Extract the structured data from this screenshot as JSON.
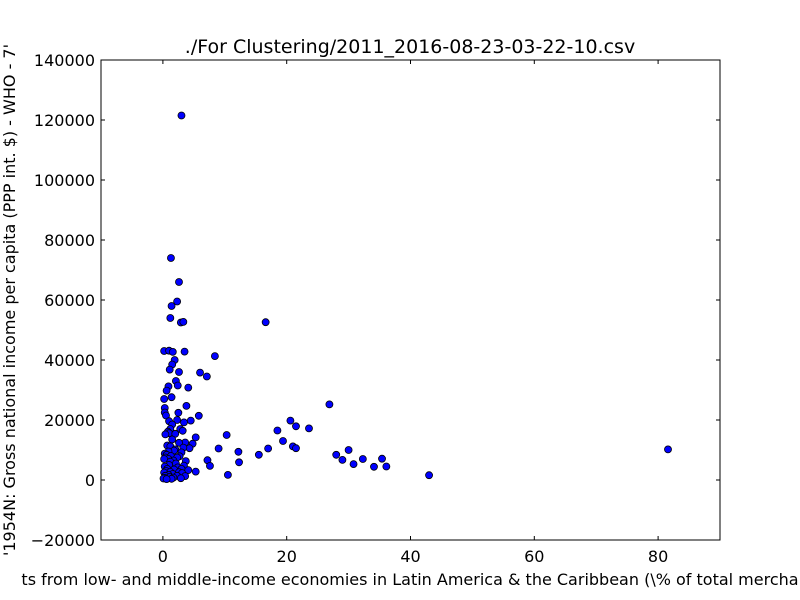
{
  "chart_data": {
    "type": "scatter",
    "title": "./For Clustering/2011_2016-08-23-03-22-10.csv",
    "xlabel": "ts from low- and middle-income economies in Latin America & the Caribbean  (\\% of total mercha",
    "ylabel": "'1954N: Gross national income per capita (PPP int. $) - WHO - 7'",
    "xlim": [
      -10,
      90
    ],
    "ylim": [
      -20000,
      140000
    ],
    "xticks": [
      0,
      20,
      40,
      60,
      80
    ],
    "yticks": [
      -20000,
      0,
      20000,
      40000,
      60000,
      80000,
      100000,
      120000,
      140000
    ],
    "grid": false,
    "marker_color": "#0000ff",
    "points": [
      [
        3.0,
        121500
      ],
      [
        1.3,
        74000
      ],
      [
        2.6,
        66000
      ],
      [
        2.3,
        59500
      ],
      [
        1.4,
        58000
      ],
      [
        1.2,
        54000
      ],
      [
        2.9,
        52500
      ],
      [
        3.3,
        52700
      ],
      [
        16.6,
        52600
      ],
      [
        0.2,
        43000
      ],
      [
        1.0,
        43100
      ],
      [
        1.6,
        42700
      ],
      [
        3.5,
        42800
      ],
      [
        8.4,
        41300
      ],
      [
        1.9,
        40000
      ],
      [
        1.5,
        38500
      ],
      [
        6.0,
        35800
      ],
      [
        7.1,
        34500
      ],
      [
        2.1,
        33000
      ],
      [
        2.6,
        36000
      ],
      [
        1.1,
        36800
      ],
      [
        2.4,
        31500
      ],
      [
        4.1,
        30800
      ],
      [
        0.9,
        31200
      ],
      [
        0.6,
        29800
      ],
      [
        0.2,
        27000
      ],
      [
        1.4,
        27600
      ],
      [
        26.9,
        25200
      ],
      [
        3.8,
        24700
      ],
      [
        0.3,
        24000
      ],
      [
        0.3,
        22500
      ],
      [
        0.5,
        21500
      ],
      [
        2.5,
        22400
      ],
      [
        5.8,
        21400
      ],
      [
        1.0,
        19600
      ],
      [
        20.6,
        19800
      ],
      [
        2.3,
        20000
      ],
      [
        3.4,
        19200
      ],
      [
        4.5,
        19800
      ],
      [
        1.5,
        18500
      ],
      [
        21.5,
        17900
      ],
      [
        23.6,
        17200
      ],
      [
        1.2,
        17000
      ],
      [
        2.8,
        17000
      ],
      [
        0.8,
        16100
      ],
      [
        18.5,
        16500
      ],
      [
        3.2,
        16400
      ],
      [
        1.0,
        15600
      ],
      [
        0.4,
        15200
      ],
      [
        2.0,
        15400
      ],
      [
        10.3,
        15000
      ],
      [
        5.3,
        14200
      ],
      [
        19.4,
        13000
      ],
      [
        1.5,
        13500
      ],
      [
        3.6,
        12500
      ],
      [
        2.6,
        12400
      ],
      [
        0.7,
        11500
      ],
      [
        4.8,
        12100
      ],
      [
        1.2,
        11200
      ],
      [
        21.0,
        11200
      ],
      [
        21.5,
        10600
      ],
      [
        17.0,
        10500
      ],
      [
        9.0,
        10500
      ],
      [
        4.3,
        10600
      ],
      [
        3.3,
        10800
      ],
      [
        2.0,
        10200
      ],
      [
        81.6,
        10200
      ],
      [
        1.8,
        9800
      ],
      [
        30.0,
        10000
      ],
      [
        0.9,
        9500
      ],
      [
        12.2,
        9400
      ],
      [
        3.0,
        9200
      ],
      [
        0.3,
        8800
      ],
      [
        0.6,
        8400
      ],
      [
        28.0,
        8400
      ],
      [
        15.5,
        8400
      ],
      [
        1.3,
        8000
      ],
      [
        2.7,
        7900
      ],
      [
        0.4,
        7500
      ],
      [
        2.3,
        7500
      ],
      [
        35.4,
        7100
      ],
      [
        32.3,
        7000
      ],
      [
        29.0,
        6700
      ],
      [
        7.2,
        6600
      ],
      [
        0.9,
        7000
      ],
      [
        0.2,
        7000
      ],
      [
        1.7,
        6500
      ],
      [
        3.7,
        6300
      ],
      [
        1.2,
        6100
      ],
      [
        12.3,
        5900
      ],
      [
        30.8,
        5300
      ],
      [
        2.1,
        5500
      ],
      [
        7.6,
        4700
      ],
      [
        1.0,
        5000
      ],
      [
        3.4,
        4800
      ],
      [
        34.1,
        4400
      ],
      [
        36.1,
        4500
      ],
      [
        0.3,
        4500
      ],
      [
        2.4,
        4200
      ],
      [
        0.7,
        3700
      ],
      [
        3.0,
        3700
      ],
      [
        1.8,
        3500
      ],
      [
        4.1,
        3300
      ],
      [
        5.3,
        2800
      ],
      [
        0.5,
        3000
      ],
      [
        1.2,
        2700
      ],
      [
        2.6,
        2600
      ],
      [
        0.2,
        2500
      ],
      [
        3.1,
        2300
      ],
      [
        1.6,
        2000
      ],
      [
        43.0,
        1600
      ],
      [
        10.5,
        1700
      ],
      [
        0.9,
        1700
      ],
      [
        2.3,
        1400
      ],
      [
        3.6,
        1300
      ],
      [
        0.4,
        1400
      ],
      [
        1.1,
        1000
      ],
      [
        1.7,
        800
      ],
      [
        0.3,
        700
      ],
      [
        2.9,
        600
      ],
      [
        0.1,
        500
      ],
      [
        1.4,
        400
      ],
      [
        0.6,
        300
      ]
    ]
  }
}
